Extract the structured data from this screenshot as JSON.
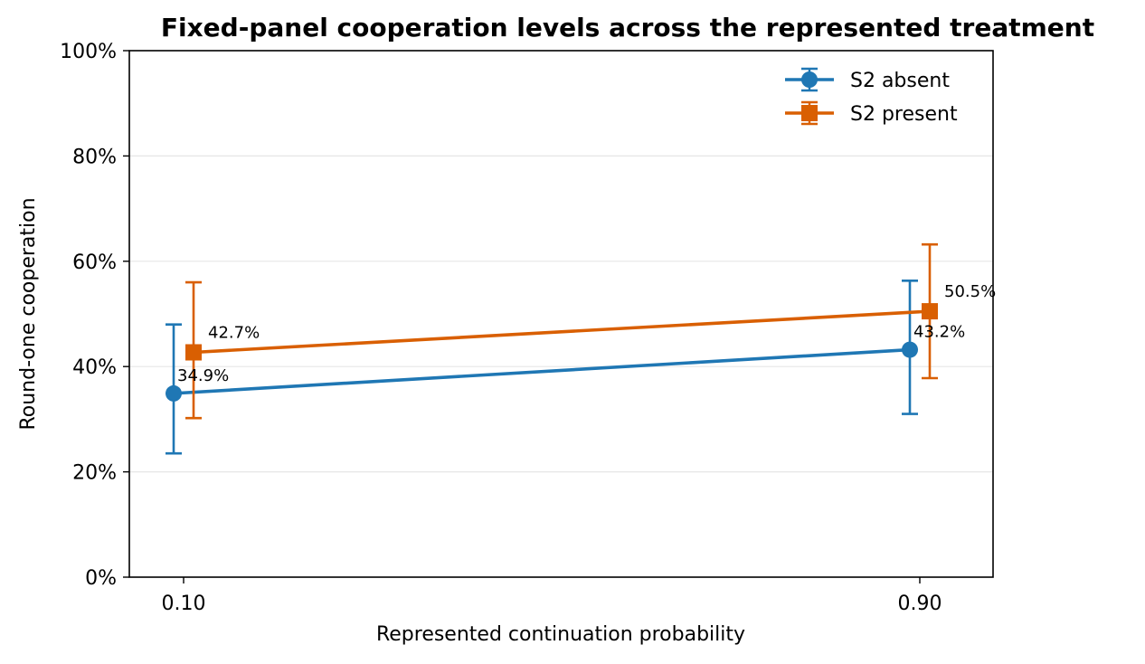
{
  "chart_data": {
    "type": "line",
    "title": "Fixed-panel cooperation levels across the represented treatment",
    "xlabel": "Represented continuation probability",
    "ylabel": "Round-one cooperation",
    "categories": [
      "0.10",
      "0.90"
    ],
    "ylim": [
      0,
      1
    ],
    "yticks": [
      "0%",
      "20%",
      "40%",
      "60%",
      "80%",
      "100%"
    ],
    "ytick_values": [
      0,
      0.2,
      0.4,
      0.6,
      0.8,
      1.0
    ],
    "grid": "horizontal",
    "legend_position": "top-right",
    "series": [
      {
        "name": "S2 absent",
        "color": "#1f77b4",
        "marker": "circle",
        "values": [
          0.349,
          0.432
        ],
        "err_low": [
          0.235,
          0.31
        ],
        "err_high": [
          0.48,
          0.563
        ],
        "labels": [
          "34.9%",
          "43.2%"
        ]
      },
      {
        "name": "S2 present",
        "color": "#d95f02",
        "marker": "square",
        "values": [
          0.427,
          0.505
        ],
        "err_low": [
          0.302,
          0.378
        ],
        "err_high": [
          0.56,
          0.632
        ],
        "labels": [
          "42.7%",
          "50.5%"
        ]
      }
    ]
  }
}
